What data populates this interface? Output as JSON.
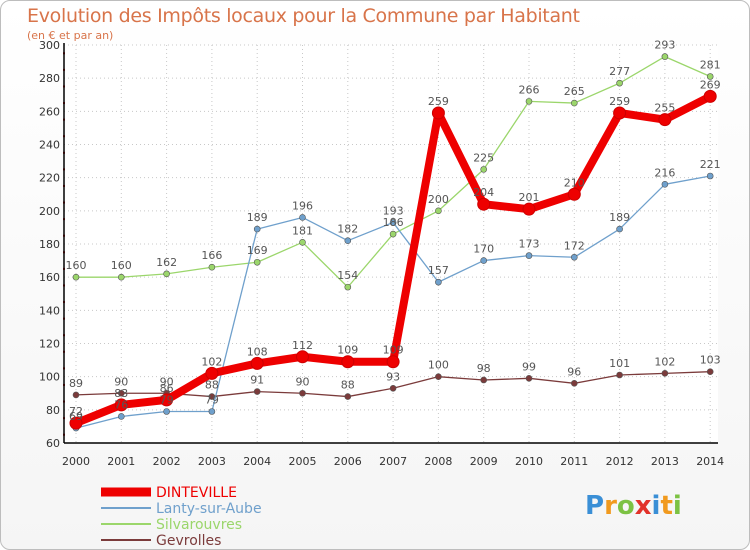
{
  "chart_data": {
    "type": "line",
    "title": "Evolution des Impôts locaux pour la Commune par Habitant",
    "subtitle": "(en € et par an)",
    "x": [
      "2000",
      "2001",
      "2002",
      "2003",
      "2004",
      "2005",
      "2006",
      "2007",
      "2008",
      "2009",
      "2010",
      "2011",
      "2012",
      "2013",
      "2014"
    ],
    "ylim": [
      60,
      300
    ],
    "yticks": [
      60,
      80,
      100,
      120,
      140,
      160,
      180,
      200,
      220,
      240,
      260,
      280,
      300
    ],
    "series": [
      {
        "name": "DINTEVILLE",
        "color": "#ee0000",
        "emphasis": true,
        "values": [
          72,
          83,
          86,
          102,
          108,
          112,
          109,
          109,
          259,
          204,
          201,
          210,
          259,
          255,
          269
        ]
      },
      {
        "name": "Lanty-sur-Aube",
        "color": "#6fa0cc",
        "values": [
          69,
          76,
          79,
          79,
          189,
          196,
          182,
          193,
          157,
          170,
          173,
          172,
          189,
          216,
          221
        ]
      },
      {
        "name": "Silvarouvres",
        "color": "#9bd66b",
        "values": [
          160,
          160,
          162,
          166,
          169,
          181,
          154,
          186,
          200,
          225,
          266,
          265,
          277,
          293,
          281
        ]
      },
      {
        "name": "Gevrolles",
        "color": "#7b3b3b",
        "values": [
          89,
          90,
          90,
          88,
          91,
          90,
          88,
          93,
          100,
          98,
          99,
          96,
          101,
          102,
          103
        ]
      }
    ]
  },
  "logo": {
    "text": "Proxiti",
    "letters": [
      "P",
      "r",
      "o",
      "x",
      "i",
      "t",
      "i"
    ]
  }
}
